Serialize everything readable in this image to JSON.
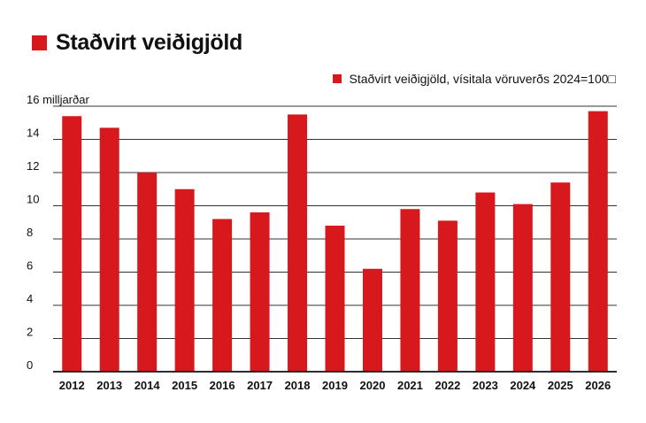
{
  "header": {
    "title": "Staðvirt veiðigjöld"
  },
  "legend": {
    "label": "Staðvirt veiðigjöld, vísitala vöruverðs 2024=100□"
  },
  "chart_data": {
    "type": "bar",
    "title": "Staðvirt veiðigjöld",
    "ylabel": "",
    "xlabel": "",
    "y_unit_label": "16 milljarðar",
    "ylim": [
      0,
      16
    ],
    "yticks": [
      0,
      2,
      4,
      6,
      8,
      10,
      12,
      14,
      16
    ],
    "grid": true,
    "legend_position": "top-right",
    "bar_color": "#d7191e",
    "categories": [
      "2012",
      "2013",
      "2014",
      "2015",
      "2016",
      "2017",
      "2018",
      "2019",
      "2020",
      "2021",
      "2022",
      "2023",
      "2024",
      "2025",
      "2026"
    ],
    "series": [
      {
        "name": "Staðvirt veiðigjöld, vísitala vöruverðs 2024=100□",
        "values": [
          15.4,
          14.7,
          12.0,
          11.0,
          9.2,
          9.6,
          15.5,
          8.8,
          6.2,
          9.8,
          9.1,
          10.8,
          10.1,
          11.4,
          15.7
        ]
      }
    ]
  }
}
